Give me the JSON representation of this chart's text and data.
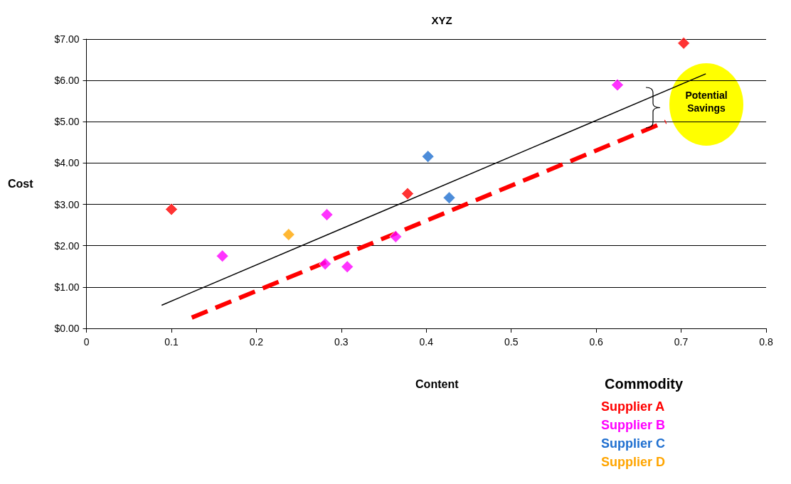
{
  "chart_data": {
    "type": "scatter",
    "title": "XYZ",
    "xlabel": "Content",
    "ylabel": "Cost",
    "legend_title": "Commodity",
    "legend": "bottom right",
    "grid": "y",
    "marker": "diamond",
    "xlim": [
      0,
      0.8
    ],
    "xticks": [
      0,
      0.1,
      0.2,
      0.3,
      0.4,
      0.5,
      0.6,
      0.7,
      0.8
    ],
    "ylim": [
      0,
      7
    ],
    "yticks": [
      {
        "value": 0,
        "label": "$0.00"
      },
      {
        "value": 1,
        "label": "$1.00"
      },
      {
        "value": 2,
        "label": "$2.00"
      },
      {
        "value": 3,
        "label": "$3.00"
      },
      {
        "value": 4,
        "label": "$4.00"
      },
      {
        "value": 5,
        "label": "$5.00"
      },
      {
        "value": 6,
        "label": "$6.00"
      },
      {
        "value": 7,
        "label": "$7.00"
      }
    ],
    "series": [
      {
        "name": "Supplier A",
        "color": "#ff0000",
        "x": [
          0.1,
          0.378,
          0.703
        ],
        "values": [
          2.88,
          3.26,
          6.9
        ]
      },
      {
        "name": "Supplier B",
        "color": "#ff00ff",
        "x": [
          0.16,
          0.283,
          0.281,
          0.307,
          0.364,
          0.625
        ],
        "values": [
          1.75,
          2.75,
          1.56,
          1.49,
          2.22,
          5.89
        ]
      },
      {
        "name": "Supplier C",
        "color": "#1f6fd0",
        "x": [
          0.402,
          0.427
        ],
        "values": [
          4.16,
          3.16
        ]
      },
      {
        "name": "Supplier D",
        "color": "#ffa500",
        "x": [
          0.238
        ],
        "values": [
          2.27
        ]
      },
      {
        "type": "line",
        "color": "#000000",
        "marker": "none",
        "line_style": "solid",
        "x": [
          0.0885,
          0.729
        ],
        "values": [
          0.56,
          6.16
        ]
      },
      {
        "type": "line",
        "color": "#ff0000",
        "marker": "none",
        "line_style": "dashed",
        "x": [
          0.124,
          0.682
        ],
        "values": [
          0.26,
          5.0
        ]
      }
    ],
    "annotations": [
      "Potential Savings"
    ]
  }
}
